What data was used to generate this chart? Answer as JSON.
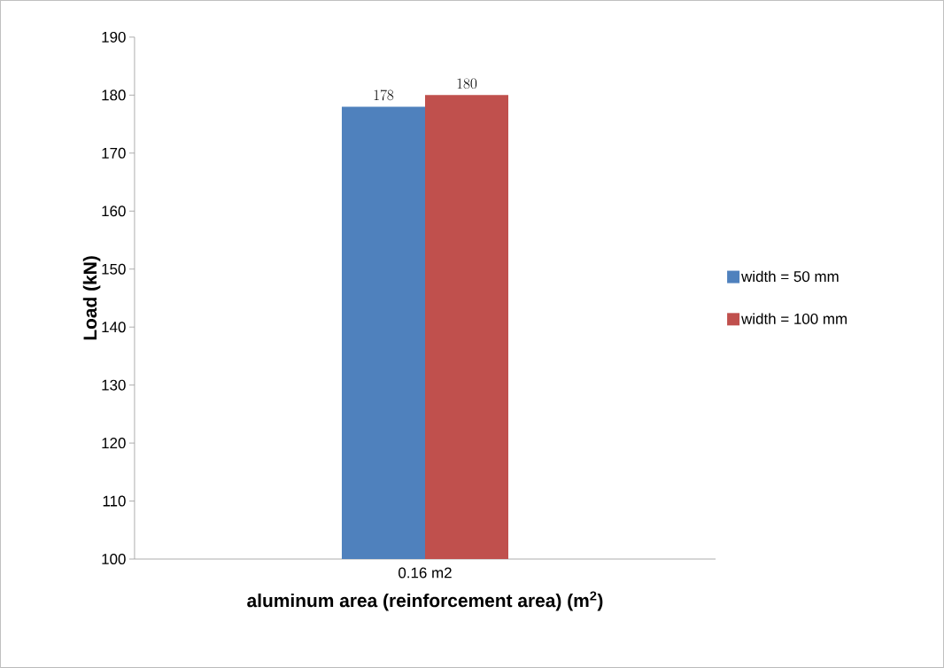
{
  "chart_data": {
    "type": "bar",
    "xlabel": "aluminum area (reinforcement area) (m$^{2}$)",
    "ylabel": "Load (kN)",
    "categories": [
      "0.16 m2"
    ],
    "series": [
      {
        "name": "width = 50 mm",
        "color": "#4f81bd",
        "values": [
          178
        ]
      },
      {
        "name": "width = 100 mm",
        "color": "#c0504d",
        "values": [
          180
        ]
      }
    ],
    "ylim": [
      100,
      190
    ],
    "yticks": [
      100,
      110,
      120,
      130,
      140,
      150,
      160,
      170,
      180,
      190
    ],
    "data_labels": true,
    "legend": "right"
  }
}
